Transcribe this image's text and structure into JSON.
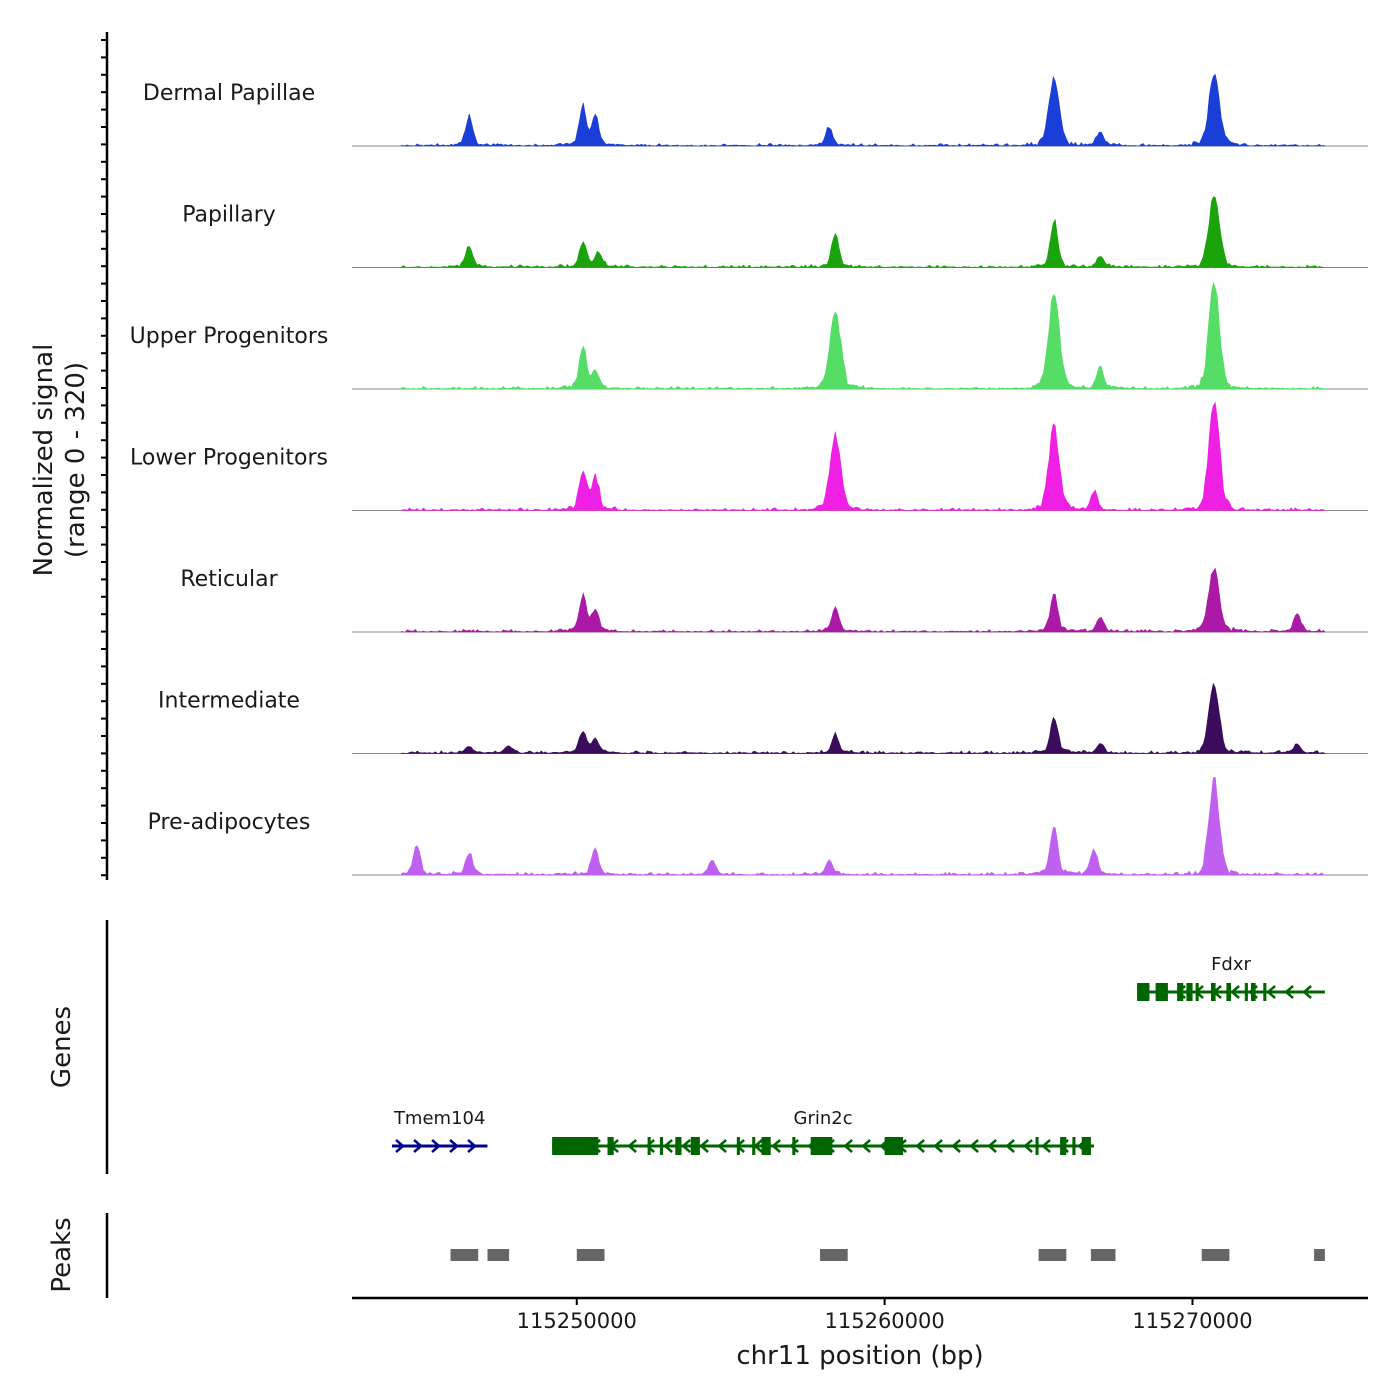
{
  "chart_data": {
    "type": "area",
    "ylabel_line1": "Normalized signal",
    "ylabel_line2": "(range 0 - 320)",
    "ylim": [
      0,
      320
    ],
    "xlabel": "chr11 position (bp)",
    "xlim": [
      115242700,
      115275700
    ],
    "x_ticks": [
      {
        "value": 115250000,
        "label": "115250000"
      },
      {
        "value": 115260000,
        "label": "115260000"
      },
      {
        "value": 115270000,
        "label": "115270000"
      }
    ],
    "signal_extent": [
      115244300,
      115274300
    ],
    "tracks": [
      {
        "name": "Dermal Papillae",
        "color": "#1a3fd8",
        "peaks": [
          [
            115246500,
            80
          ],
          [
            115250200,
            110
          ],
          [
            115250600,
            80
          ],
          [
            115258200,
            50
          ],
          [
            115265500,
            190
          ],
          [
            115267000,
            40
          ],
          [
            115270700,
            200
          ]
        ]
      },
      {
        "name": "Papillary",
        "color": "#1aa30a",
        "peaks": [
          [
            115246500,
            60
          ],
          [
            115250200,
            70
          ],
          [
            115250700,
            40
          ],
          [
            115258400,
            90
          ],
          [
            115265500,
            130
          ],
          [
            115267000,
            30
          ],
          [
            115270700,
            200
          ]
        ]
      },
      {
        "name": "Upper Progenitors",
        "color": "#55dd66",
        "peaks": [
          [
            115250200,
            120
          ],
          [
            115250600,
            50
          ],
          [
            115258400,
            220
          ],
          [
            115265500,
            270
          ],
          [
            115267000,
            60
          ],
          [
            115270700,
            300
          ]
        ]
      },
      {
        "name": "Lower Progenitors",
        "color": "#f01fe4",
        "peaks": [
          [
            115250200,
            110
          ],
          [
            115250600,
            90
          ],
          [
            115258400,
            210
          ],
          [
            115265500,
            230
          ],
          [
            115266800,
            50
          ],
          [
            115270700,
            310
          ]
        ]
      },
      {
        "name": "Reticular",
        "color": "#aa1aa6",
        "peaks": [
          [
            115250200,
            100
          ],
          [
            115250600,
            60
          ],
          [
            115258400,
            70
          ],
          [
            115265500,
            110
          ],
          [
            115267000,
            40
          ],
          [
            115270700,
            180
          ],
          [
            115273400,
            50
          ]
        ]
      },
      {
        "name": "Intermediate",
        "color": "#3b0b5c",
        "peaks": [
          [
            115246500,
            20
          ],
          [
            115247800,
            20
          ],
          [
            115250200,
            60
          ],
          [
            115250600,
            40
          ],
          [
            115258400,
            50
          ],
          [
            115265500,
            100
          ],
          [
            115267000,
            25
          ],
          [
            115270700,
            190
          ],
          [
            115273400,
            25
          ]
        ]
      },
      {
        "name": "Pre-adipocytes",
        "color": "#c060f0",
        "peaks": [
          [
            115244800,
            80
          ],
          [
            115246500,
            60
          ],
          [
            115250600,
            70
          ],
          [
            115254400,
            40
          ],
          [
            115258200,
            40
          ],
          [
            115265500,
            140
          ],
          [
            115266800,
            70
          ],
          [
            115270700,
            260
          ]
        ]
      }
    ],
    "genes_label": "Genes",
    "genes": [
      {
        "name": "Fdxr",
        "start": 115268200,
        "end": 115274300,
        "strand": "-",
        "color": "#006400",
        "row": 0,
        "exons": [
          [
            115268200,
            115268600
          ],
          [
            115268800,
            115269200
          ],
          [
            115269500,
            115269700
          ],
          [
            115269800,
            115270000
          ],
          [
            115270100,
            115270200
          ],
          [
            115270600,
            115270750
          ],
          [
            115271100,
            115271250
          ],
          [
            115271700,
            115271800
          ],
          [
            115271900,
            115272050
          ],
          [
            115272300,
            115272400
          ]
        ]
      },
      {
        "name": "Tmem104",
        "start": 115244000,
        "end": 115247100,
        "strand": "+",
        "color": "#00008b",
        "row": 1,
        "exons": []
      },
      {
        "name": "Grin2c",
        "start": 115249200,
        "end": 115266800,
        "strand": "-",
        "color": "#006400",
        "row": 1,
        "exons": [
          [
            115249200,
            115250700
          ],
          [
            115251000,
            115251200
          ],
          [
            115252300,
            115252400
          ],
          [
            115252700,
            115252800
          ],
          [
            115253200,
            115253400
          ],
          [
            115253700,
            115254000
          ],
          [
            115255200,
            115255300
          ],
          [
            115255700,
            115255800
          ],
          [
            115256000,
            115256300
          ],
          [
            115257000,
            115257100
          ],
          [
            115257600,
            115258300
          ],
          [
            115260000,
            115260600
          ],
          [
            115264900,
            115265000
          ],
          [
            115265700,
            115265900
          ],
          [
            115266100,
            115266200
          ],
          [
            115266400,
            115266700
          ]
        ]
      }
    ],
    "peaks_label": "Peaks",
    "peak_regions": [
      [
        115245900,
        115246800
      ],
      [
        115247100,
        115247800
      ],
      [
        115250000,
        115250900
      ],
      [
        115257900,
        115258800
      ],
      [
        115265000,
        115265900
      ],
      [
        115266700,
        115267500
      ],
      [
        115270300,
        115271200
      ],
      [
        115273950,
        115274300
      ]
    ]
  }
}
